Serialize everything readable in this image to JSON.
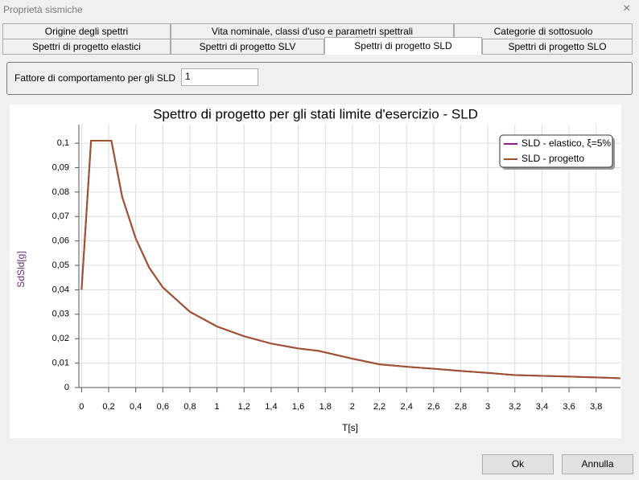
{
  "window": {
    "title": "Proprietà sismiche"
  },
  "tabs": {
    "row1": [
      "Origine degli spettri",
      "Vita nominale, classi d'uso e parametri spettrali",
      "Categorie di sottosuolo"
    ],
    "row2": [
      "Spettri di progetto elastici",
      "Spettri di progetto SLV",
      "Spettri di progetto SLD",
      "Spettri di progetto SLO"
    ]
  },
  "field": {
    "label": "Fattore di comportamento per gli SLD",
    "value": "1"
  },
  "buttons": {
    "ok": "Ok",
    "cancel": "Annulla"
  },
  "chart_data": {
    "type": "line",
    "title": "Spettro di progetto per gli stati limite d'esercizio - SLD",
    "x_label": "T[s]",
    "y_label": "SdSld[g]",
    "x": [
      0,
      0.07,
      0.22,
      0.3,
      0.4,
      0.5,
      0.6,
      0.8,
      1.0,
      1.2,
      1.4,
      1.6,
      1.75,
      2.0,
      2.2,
      2.4,
      2.6,
      2.8,
      3.0,
      3.2,
      3.6,
      3.98
    ],
    "series": [
      {
        "name": "SLD - elastico, ξ=5%",
        "color": "#8e1a8e",
        "values": [
          0.04,
          0.101,
          0.101,
          0.078,
          0.061,
          0.049,
          0.041,
          0.031,
          0.025,
          0.021,
          0.018,
          0.016,
          0.015,
          0.0118,
          0.0095,
          0.0085,
          0.0077,
          0.0068,
          0.006,
          0.0051,
          0.0045,
          0.0038
        ]
      },
      {
        "name": "SLD - progetto",
        "color": "#a0522d",
        "values": [
          0.04,
          0.101,
          0.101,
          0.078,
          0.061,
          0.049,
          0.041,
          0.031,
          0.025,
          0.021,
          0.018,
          0.016,
          0.015,
          0.0118,
          0.0095,
          0.0085,
          0.0077,
          0.0068,
          0.006,
          0.0051,
          0.0045,
          0.0038
        ]
      }
    ],
    "xlim": [
      -0.02,
      3.98
    ],
    "xticks": [
      0,
      {
        "value": 0.2,
        "label": "0,2"
      },
      {
        "value": 0.4,
        "label": "0,4"
      },
      {
        "value": 0.6,
        "label": "0,6"
      },
      {
        "value": 0.8,
        "label": "0,8"
      },
      1,
      {
        "value": 1.2,
        "label": "1,2"
      },
      {
        "value": 1.4,
        "label": "1,4"
      },
      {
        "value": 1.6,
        "label": "1,6"
      },
      {
        "value": 1.8,
        "label": "1,8"
      },
      2,
      {
        "value": 2.2,
        "label": "2,2"
      },
      {
        "value": 2.4,
        "label": "2,4"
      },
      {
        "value": 2.6,
        "label": "2,6"
      },
      {
        "value": 2.8,
        "label": "2,8"
      },
      3,
      {
        "value": 3.2,
        "label": "3,2"
      },
      {
        "value": 3.4,
        "label": "3,4"
      },
      {
        "value": 3.6,
        "label": "3,6"
      },
      {
        "value": 3.8,
        "label": "3,8"
      }
    ],
    "ylim": [
      0,
      0.1076
    ],
    "yticks": [
      0,
      {
        "value": 0.01,
        "label": "0,01"
      },
      {
        "value": 0.02,
        "label": "0,02"
      },
      {
        "value": 0.03,
        "label": "0,03"
      },
      {
        "value": 0.04,
        "label": "0,04"
      },
      {
        "value": 0.05,
        "label": "0,05"
      },
      {
        "value": 0.06,
        "label": "0,06"
      },
      {
        "value": 0.07,
        "label": "0,07"
      },
      {
        "value": 0.08,
        "label": "0,08"
      },
      {
        "value": 0.09,
        "label": "0,09"
      },
      {
        "value": 0.1,
        "label": "0,1"
      }
    ],
    "grid": true,
    "legend": "top-right"
  }
}
